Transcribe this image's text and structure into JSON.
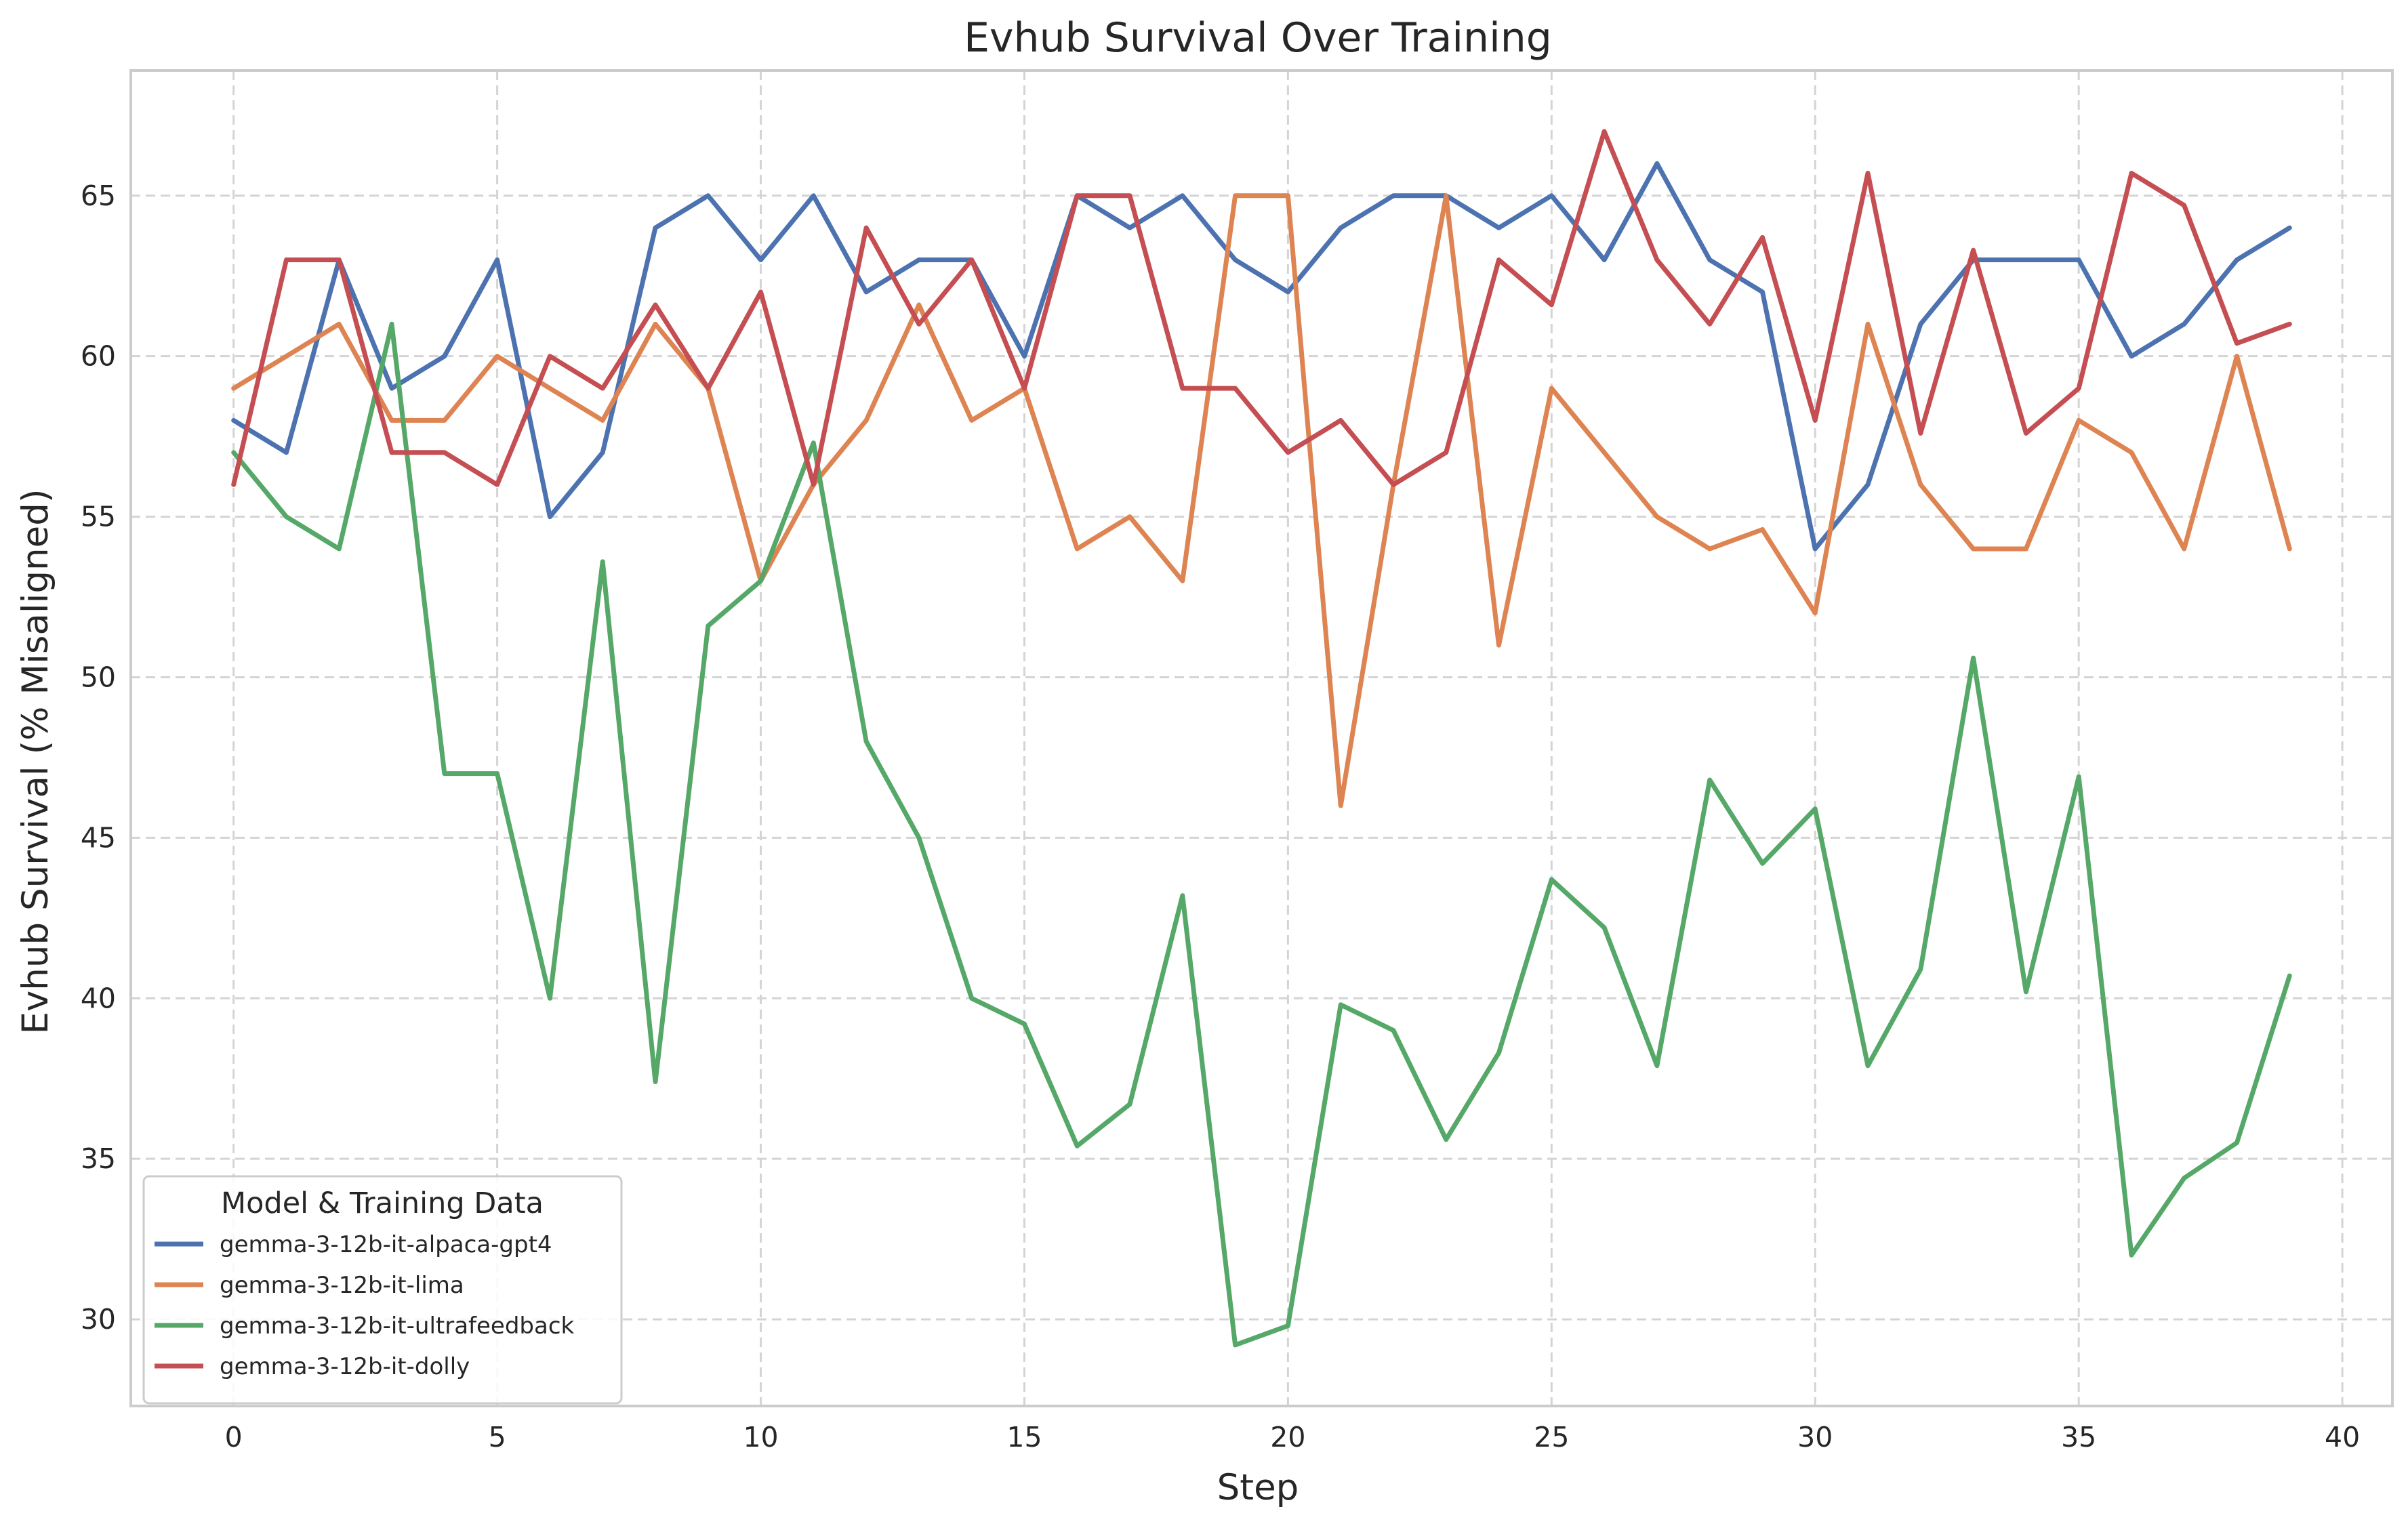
{
  "chart_data": {
    "type": "line",
    "title": "Evhub Survival Over Training",
    "xlabel": "Step",
    "ylabel": "Evhub Survival (% Misaligned)",
    "xlim": [
      -1.95,
      40.95
    ],
    "ylim": [
      27.3,
      68.9
    ],
    "xticks": [
      0,
      5,
      10,
      15,
      20,
      25,
      30,
      35,
      40
    ],
    "yticks": [
      30,
      35,
      40,
      45,
      50,
      55,
      60,
      65
    ],
    "grid": true,
    "legend": {
      "title": "Model & Training Data",
      "position": "lower-left"
    },
    "x": [
      0,
      1,
      2,
      3,
      4,
      5,
      6,
      7,
      8,
      9,
      10,
      11,
      12,
      13,
      14,
      15,
      16,
      17,
      18,
      19,
      20,
      21,
      22,
      23,
      24,
      25,
      26,
      27,
      28,
      29,
      30,
      31,
      32,
      33,
      34,
      35,
      36,
      37,
      38,
      39
    ],
    "series": [
      {
        "name": "gemma-3-12b-it-alpaca-gpt4",
        "color": "#4c72b0",
        "values": [
          58,
          57,
          63,
          59,
          60,
          63,
          55,
          57,
          64,
          65,
          63,
          65,
          62,
          63,
          63,
          60,
          65,
          64,
          65,
          63,
          62,
          64,
          65,
          65,
          64,
          65,
          63,
          66,
          63,
          62,
          54,
          56,
          61,
          63,
          63,
          63,
          60,
          61,
          63,
          64
        ]
      },
      {
        "name": "gemma-3-12b-it-lima",
        "color": "#dd8452",
        "values": [
          59,
          60,
          61,
          58,
          58,
          60,
          59,
          58,
          61,
          59,
          53,
          56,
          58,
          61.6,
          58,
          59,
          54,
          55,
          53,
          65,
          65,
          46,
          56,
          65,
          51,
          59,
          57,
          55,
          54,
          54.6,
          52,
          61,
          56,
          54,
          54,
          58,
          57,
          54,
          60,
          54
        ]
      },
      {
        "name": "gemma-3-12b-it-ultrafeedback",
        "color": "#55a868",
        "values": [
          57,
          55,
          54,
          61,
          47,
          47,
          40,
          53.6,
          37.4,
          51.6,
          53,
          57.3,
          48,
          45,
          40,
          39.2,
          35.4,
          36.7,
          43.2,
          29.2,
          29.8,
          39.8,
          39,
          35.6,
          38.3,
          43.7,
          42.2,
          37.9,
          46.8,
          44.2,
          45.9,
          37.9,
          40.9,
          50.6,
          40.2,
          46.9,
          32,
          34.4,
          35.5,
          40.7
        ]
      },
      {
        "name": "gemma-3-12b-it-dolly",
        "color": "#c44e52",
        "values": [
          56,
          63,
          63,
          57,
          57,
          56,
          60,
          59,
          61.6,
          59,
          62,
          56,
          64,
          61,
          63,
          59,
          65,
          65,
          59,
          59,
          57,
          58,
          56,
          57,
          63,
          61.6,
          67,
          63,
          61,
          63.7,
          58,
          65.7,
          57.6,
          63.3,
          57.6,
          59,
          65.7,
          64.7,
          60.4,
          61
        ]
      }
    ]
  }
}
